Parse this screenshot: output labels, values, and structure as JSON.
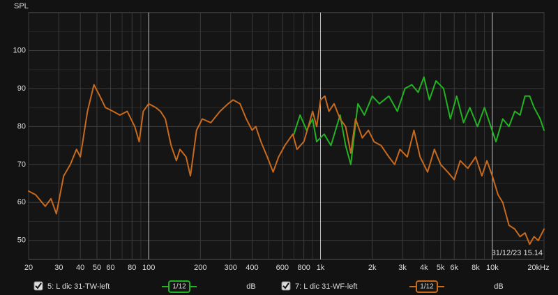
{
  "chart_data": {
    "type": "line",
    "y_label": "SPL",
    "annotation": "31/12/23 15.14",
    "log_x": true,
    "grid": true,
    "xlim": [
      20,
      20000
    ],
    "ylim": [
      45,
      110
    ],
    "xticks": [
      20,
      30,
      40,
      50,
      60,
      80,
      100,
      200,
      300,
      400,
      600,
      800,
      {
        "value": 1000,
        "label": "1k"
      },
      {
        "value": 2000,
        "label": "2k"
      },
      {
        "value": 3000,
        "label": "3k"
      },
      {
        "value": 4000,
        "label": "4k"
      },
      {
        "value": 5000,
        "label": "5k"
      },
      {
        "value": 6000,
        "label": "6k"
      },
      {
        "value": 8000,
        "label": "8k"
      },
      {
        "value": 10000,
        "label": "10k"
      },
      {
        "value": 20000,
        "label": "20kHz"
      }
    ],
    "x_major_grid": [
      100,
      1000,
      10000
    ],
    "x_minor_grid": [
      70,
      90,
      500,
      700,
      900,
      7000,
      9000
    ],
    "yticks": [
      50,
      60,
      70,
      80,
      90,
      100
    ],
    "y_minor_grid": [
      55,
      65,
      75,
      85,
      95,
      105
    ],
    "series": [
      {
        "name": "5: L dic 31-TW-left",
        "color": "#22b322",
        "smoothing": "1/12",
        "unit": "dB",
        "x": [
          700,
          760,
          830,
          900,
          950,
          1050,
          1150,
          1300,
          1400,
          1500,
          1650,
          1800,
          2000,
          2200,
          2500,
          2800,
          3100,
          3400,
          3700,
          4000,
          4300,
          4700,
          5200,
          5700,
          6200,
          6800,
          7400,
          8200,
          9000,
          9800,
          10500,
          11500,
          12500,
          13500,
          14500,
          15500,
          16500,
          17500,
          19000,
          20000
        ],
        "values": [
          78,
          83,
          79,
          82,
          76,
          78,
          75,
          83,
          75,
          70,
          86,
          83,
          88,
          86,
          88,
          84,
          90,
          91,
          89,
          93,
          87,
          92,
          90,
          82,
          88,
          81,
          85,
          80,
          85,
          80,
          76,
          82,
          80,
          84,
          83,
          88,
          88,
          85,
          82,
          79
        ]
      },
      {
        "name": "7: L dic 31-WF-left",
        "color": "#c86a1e",
        "smoothing": "1/12",
        "unit": "dB",
        "x": [
          20,
          22,
          25,
          27,
          29,
          32,
          35,
          38,
          40,
          44,
          48,
          52,
          56,
          62,
          68,
          75,
          83,
          88,
          93,
          100,
          110,
          117,
          125,
          135,
          145,
          152,
          165,
          175,
          190,
          205,
          230,
          260,
          290,
          310,
          340,
          370,
          400,
          420,
          450,
          490,
          530,
          570,
          620,
          690,
          730,
          800,
          850,
          900,
          950,
          1000,
          1060,
          1120,
          1200,
          1300,
          1400,
          1500,
          1600,
          1750,
          1900,
          2050,
          2250,
          2500,
          2700,
          2900,
          3200,
          3500,
          3800,
          4200,
          4600,
          5000,
          5500,
          6000,
          6500,
          7200,
          8000,
          8700,
          9300,
          10000,
          10800,
          11500,
          12500,
          13500,
          14500,
          15500,
          16500,
          17500,
          18500,
          20000
        ],
        "values": [
          63,
          62,
          59,
          61,
          57,
          67,
          70,
          74,
          72,
          84,
          91,
          88,
          85,
          84,
          83,
          84,
          80,
          76,
          84,
          86,
          85,
          84,
          82,
          75,
          71,
          74,
          72,
          67,
          79,
          82,
          81,
          84,
          86,
          87,
          86,
          82,
          79,
          80,
          76,
          72,
          68,
          72,
          75,
          78,
          74,
          76,
          80,
          84,
          80,
          87,
          88,
          84,
          86,
          82,
          80,
          73,
          82,
          77,
          79,
          76,
          75,
          72,
          70,
          74,
          72,
          79,
          72,
          68,
          74,
          70,
          68,
          66,
          71,
          69,
          72,
          67,
          71,
          67,
          62,
          60,
          54,
          53,
          51,
          52,
          49,
          51,
          50,
          53
        ]
      }
    ]
  }
}
